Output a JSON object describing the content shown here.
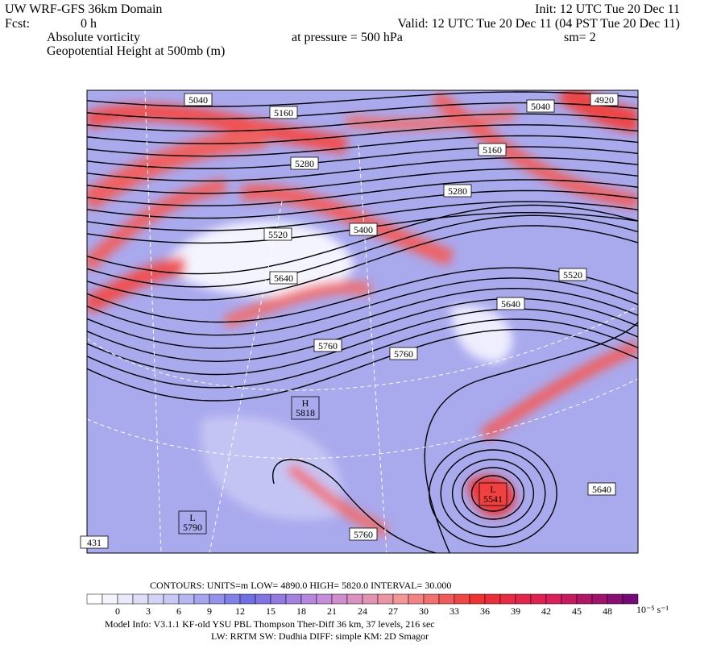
{
  "header": {
    "title": "UW WRF-GFS 36km Domain",
    "init": "Init: 12 UTC Tue 20 Dec 11",
    "fcst_label": "Fcst:",
    "fcst_value": "0 h",
    "valid": "Valid: 12 UTC Tue 20 Dec 11 (04 PST Tue 20 Dec 11)",
    "field1": "Absolute vorticity",
    "pressure": "at pressure =  500 hPa",
    "smoothing": "sm= 2",
    "field2": "Geopotential Height at 500mb (m)"
  },
  "map": {
    "contour_labels": [
      "5040",
      "5160",
      "5040",
      "4920",
      "5160",
      "5280",
      "5280",
      "5400",
      "5520",
      "5640",
      "5520",
      "5640",
      "5760",
      "5760",
      "5640",
      "5760",
      "431"
    ],
    "centers": [
      {
        "mark": "H",
        "value": "5818"
      },
      {
        "mark": "L",
        "value": "5541"
      },
      {
        "mark": "L",
        "value": "5790"
      }
    ]
  },
  "footer": {
    "contours": "CONTOURS:  UNITS=m  LOW=   4890.0      HIGH=  5820.0      INTERVAL=   30.000",
    "colorbar_ticks": [
      0,
      3,
      6,
      9,
      12,
      15,
      18,
      21,
      24,
      27,
      30,
      33,
      36,
      39,
      42,
      45,
      48
    ],
    "colorbar_units": "10⁻⁵ s⁻¹",
    "model_info": "Model Info: V3.1.1    KF-old  YSU PBL  Thompson     Ther-Diff 36 km,    37 levels,  216 sec",
    "physics": "LW: RRTM SW: Dudhia  DIFF: simple KM: 2D Smagor"
  }
}
